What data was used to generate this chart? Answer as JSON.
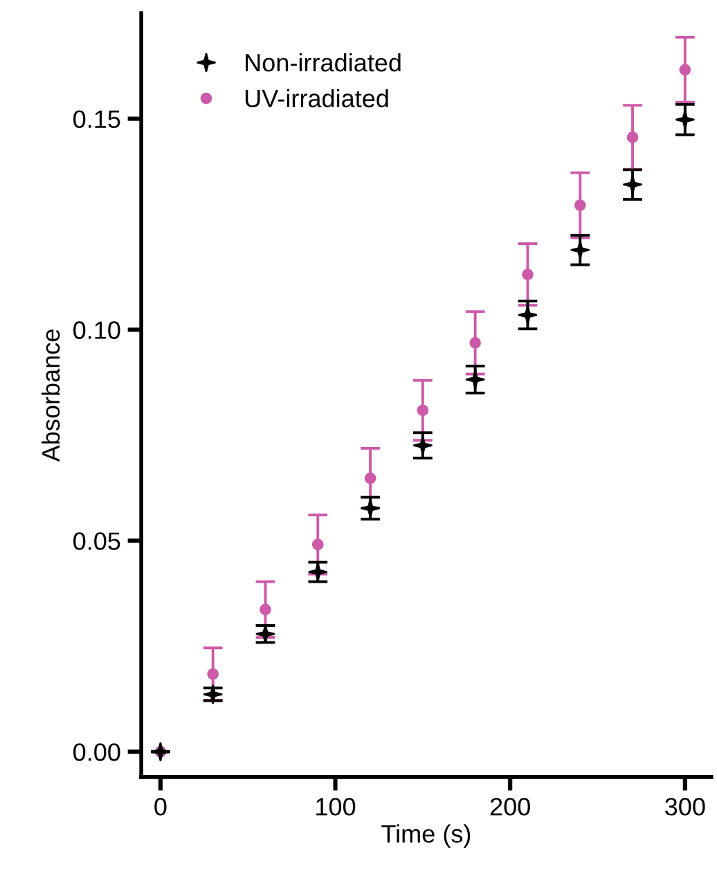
{
  "chart_data": {
    "type": "scatter",
    "xlabel": "Time (s)",
    "ylabel": "Absorbance",
    "x": [
      0,
      30,
      60,
      90,
      120,
      150,
      180,
      210,
      240,
      270,
      300
    ],
    "series": [
      {
        "name": "Non-irradiated",
        "color": "#000000",
        "marker": "star",
        "values": [
          0,
          0.0136,
          0.0279,
          0.0426,
          0.0577,
          0.0726,
          0.0882,
          0.1035,
          0.1189,
          0.1344,
          0.1498
        ],
        "errors": [
          null,
          0.0015,
          0.002,
          0.0023,
          0.0026,
          0.003,
          0.0032,
          0.0033,
          0.0035,
          0.0035,
          0.0036
        ]
      },
      {
        "name": "UV-irradiated",
        "color": "#cc5aa8",
        "marker": "circle",
        "values": [
          0,
          0.0184,
          0.0337,
          0.0491,
          0.0648,
          0.0809,
          0.0969,
          0.1131,
          0.1295,
          0.1456,
          0.1616
        ],
        "errors": [
          null,
          0.0062,
          0.0066,
          0.007,
          0.0071,
          0.0071,
          0.0074,
          0.0073,
          0.0077,
          0.0076,
          0.0077
        ]
      }
    ],
    "xlim": [
      -11,
      315
    ],
    "xticks": [
      0,
      100,
      200,
      300
    ],
    "ylim": [
      -0.006,
      0.175
    ],
    "yticks": [
      {
        "value": 0,
        "label": "0.00"
      },
      {
        "value": 0.05,
        "label": "0.05"
      },
      {
        "value": 0.1,
        "label": "0.10"
      },
      {
        "value": 0.15,
        "label": "0.15"
      }
    ],
    "grid": false,
    "legend": "top left"
  }
}
